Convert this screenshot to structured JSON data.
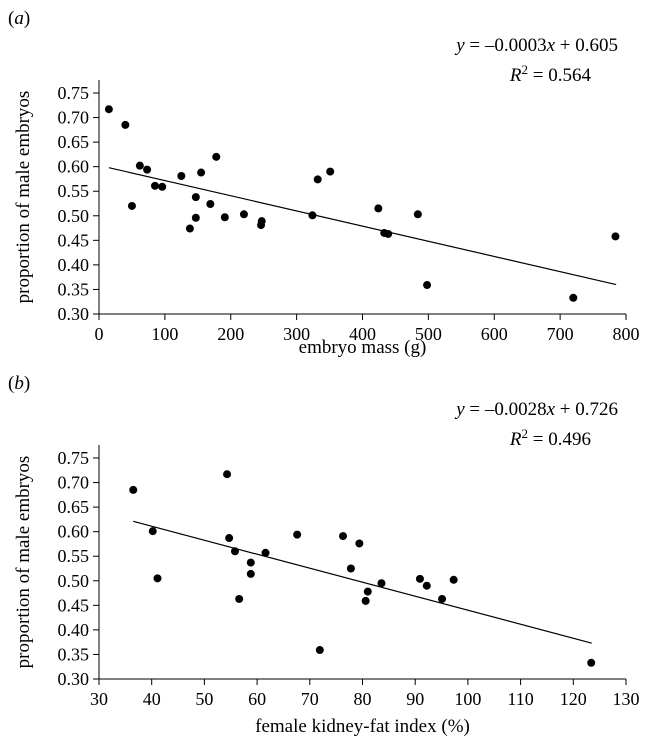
{
  "chart_data": [
    {
      "type": "scatter",
      "panel_label": "(a)",
      "xlabel": "embryo mass (g)",
      "ylabel": "proportion of male embryos",
      "xlim": [
        0,
        800
      ],
      "ylim": [
        0.3,
        0.75
      ],
      "xticks": [
        "0",
        "100",
        "200",
        "300",
        "400",
        "500",
        "600",
        "700",
        "800"
      ],
      "yticks": [
        "0.30",
        "0.35",
        "0.40",
        "0.45",
        "0.50",
        "0.55",
        "0.60",
        "0.65",
        "0.70",
        "0.75"
      ],
      "equation": "y = –0.0003x + 0.605",
      "r_squared": "R² = 0.564",
      "trendline": {
        "x0": 15,
        "y0": 0.598,
        "x1": 785,
        "y1": 0.36
      },
      "points": [
        [
          15,
          0.717
        ],
        [
          40,
          0.685
        ],
        [
          50,
          0.52
        ],
        [
          62,
          0.602
        ],
        [
          73,
          0.594
        ],
        [
          85,
          0.561
        ],
        [
          96,
          0.559
        ],
        [
          125,
          0.581
        ],
        [
          138,
          0.474
        ],
        [
          147,
          0.538
        ],
        [
          147,
          0.496
        ],
        [
          155,
          0.588
        ],
        [
          169,
          0.524
        ],
        [
          178,
          0.62
        ],
        [
          191,
          0.497
        ],
        [
          220,
          0.503
        ],
        [
          246,
          0.481
        ],
        [
          247,
          0.489
        ],
        [
          324,
          0.501
        ],
        [
          332,
          0.574
        ],
        [
          351,
          0.59
        ],
        [
          424,
          0.515
        ],
        [
          433,
          0.465
        ],
        [
          439,
          0.463
        ],
        [
          484,
          0.503
        ],
        [
          498,
          0.359
        ],
        [
          720,
          0.333
        ],
        [
          784,
          0.458
        ]
      ]
    },
    {
      "type": "scatter",
      "panel_label": "(b)",
      "xlabel": "female kidney-fat index (%)",
      "ylabel": "proportion of male embryos",
      "xlim": [
        30,
        130
      ],
      "ylim": [
        0.3,
        0.75
      ],
      "xticks": [
        "30",
        "40",
        "50",
        "60",
        "70",
        "80",
        "90",
        "100",
        "110",
        "120",
        "130"
      ],
      "yticks": [
        "0.30",
        "0.35",
        "0.40",
        "0.45",
        "0.50",
        "0.55",
        "0.60",
        "0.65",
        "0.70",
        "0.75"
      ],
      "equation": "y = –0.0028x + 0.726",
      "r_squared": "R² = 0.496",
      "trendline": {
        "x0": 36.5,
        "y0": 0.621,
        "x1": 123.5,
        "y1": 0.373
      },
      "points": [
        [
          36.5,
          0.685
        ],
        [
          40.2,
          0.601
        ],
        [
          41.1,
          0.505
        ],
        [
          54.3,
          0.717
        ],
        [
          54.7,
          0.587
        ],
        [
          55.8,
          0.56
        ],
        [
          56.6,
          0.463
        ],
        [
          58.8,
          0.537
        ],
        [
          58.8,
          0.514
        ],
        [
          61.6,
          0.557
        ],
        [
          67.6,
          0.594
        ],
        [
          71.9,
          0.359
        ],
        [
          76.3,
          0.591
        ],
        [
          77.8,
          0.525
        ],
        [
          79.4,
          0.576
        ],
        [
          80.6,
          0.459
        ],
        [
          81.0,
          0.478
        ],
        [
          83.6,
          0.495
        ],
        [
          90.9,
          0.504
        ],
        [
          92.2,
          0.49
        ],
        [
          95.1,
          0.463
        ],
        [
          97.3,
          0.502
        ],
        [
          123.4,
          0.333
        ]
      ]
    }
  ]
}
